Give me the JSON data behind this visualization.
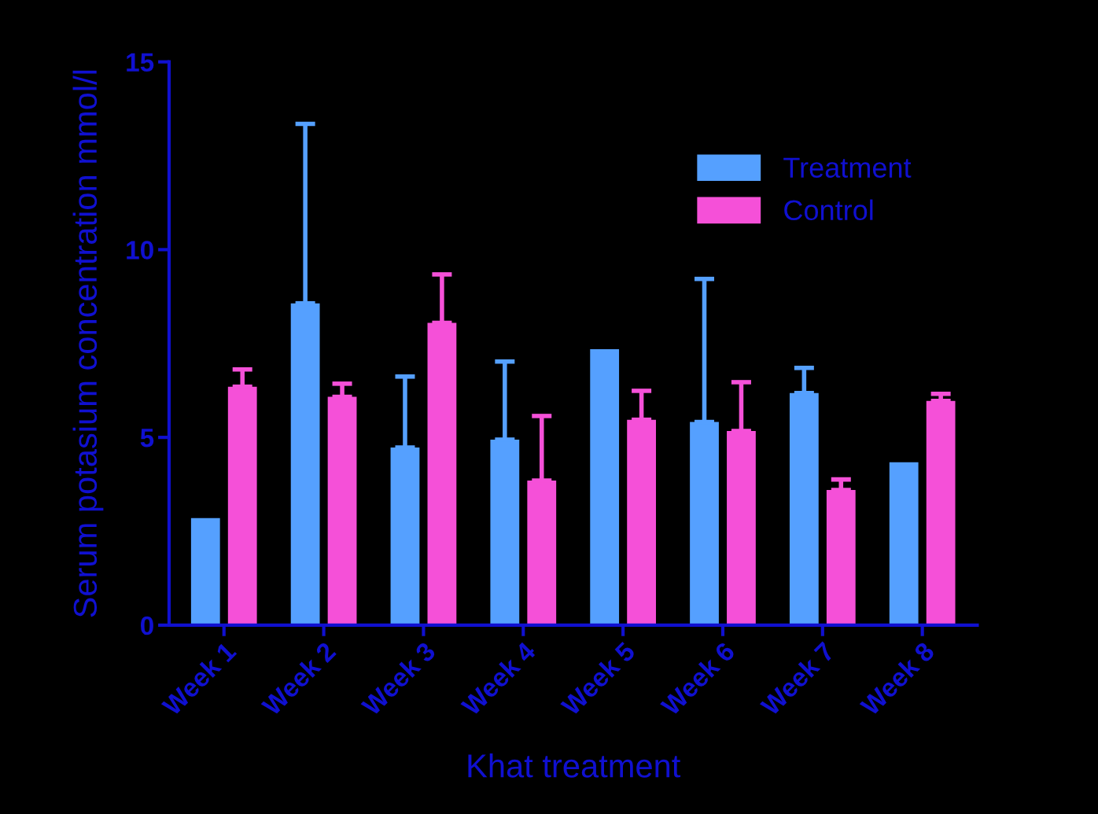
{
  "chart_data": {
    "type": "bar",
    "xlabel": "Khat treatment",
    "ylabel": "Serum potasium concentration mmol/l",
    "categories": [
      "Week 1",
      "Week 2",
      "Week 3",
      "Week 4",
      "Week 5",
      "Week 6",
      "Week 7",
      "Week 8"
    ],
    "series": [
      {
        "name": "Treatment",
        "color": "#55a0ff",
        "values": [
          2.85,
          8.57,
          4.73,
          4.94,
          7.35,
          5.41,
          6.18,
          4.34
        ],
        "errors": [
          null,
          [
            8.57,
            13.35
          ],
          [
            4.73,
            6.62
          ],
          [
            4.94,
            7.02
          ],
          null,
          [
            5.41,
            9.22
          ],
          [
            6.18,
            6.85
          ],
          null
        ]
      },
      {
        "name": "Control",
        "color": "#f550d8",
        "values": [
          6.35,
          6.08,
          8.05,
          3.85,
          5.47,
          5.17,
          3.6,
          5.97
        ],
        "errors": [
          [
            6.35,
            6.81
          ],
          [
            6.08,
            6.43
          ],
          [
            8.05,
            9.34
          ],
          [
            3.85,
            5.57
          ],
          [
            5.47,
            6.24
          ],
          [
            5.17,
            6.47
          ],
          [
            3.6,
            3.88
          ],
          [
            5.97,
            6.16
          ]
        ]
      }
    ],
    "ylim": [
      0,
      15
    ],
    "yticks": [
      0,
      5,
      10,
      15
    ],
    "grid": false,
    "legend": "top right"
  }
}
